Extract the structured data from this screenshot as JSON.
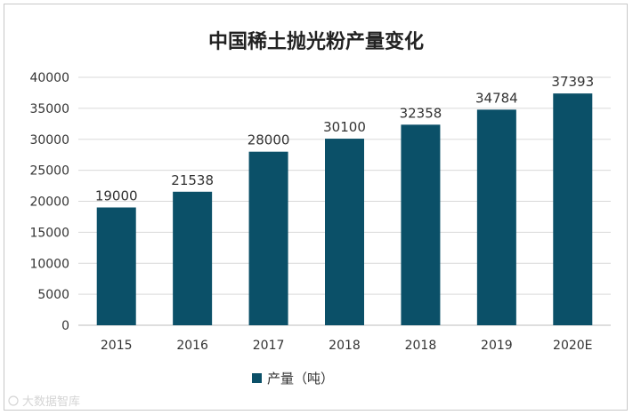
{
  "chart_data": {
    "type": "bar",
    "title": "中国稀土抛光粉产量变化",
    "categories": [
      "2015",
      "2016",
      "2017",
      "2018",
      "2018",
      "2019",
      "2020E"
    ],
    "series": [
      {
        "name": "产量（吨）",
        "color": "#0b5068",
        "values": [
          19000,
          21538,
          28000,
          30100,
          32358,
          34784,
          37393
        ]
      }
    ],
    "data_labels": [
      "19000",
      "21538",
      "28000",
      "30100",
      "32358",
      "34784",
      "37393"
    ],
    "y_ticks": [
      "0",
      "5000",
      "10000",
      "15000",
      "20000",
      "25000",
      "30000",
      "35000",
      "40000"
    ],
    "ylim": [
      0,
      40000
    ],
    "grid": true,
    "legend_position": "bottom"
  },
  "watermark": "大数据智库"
}
